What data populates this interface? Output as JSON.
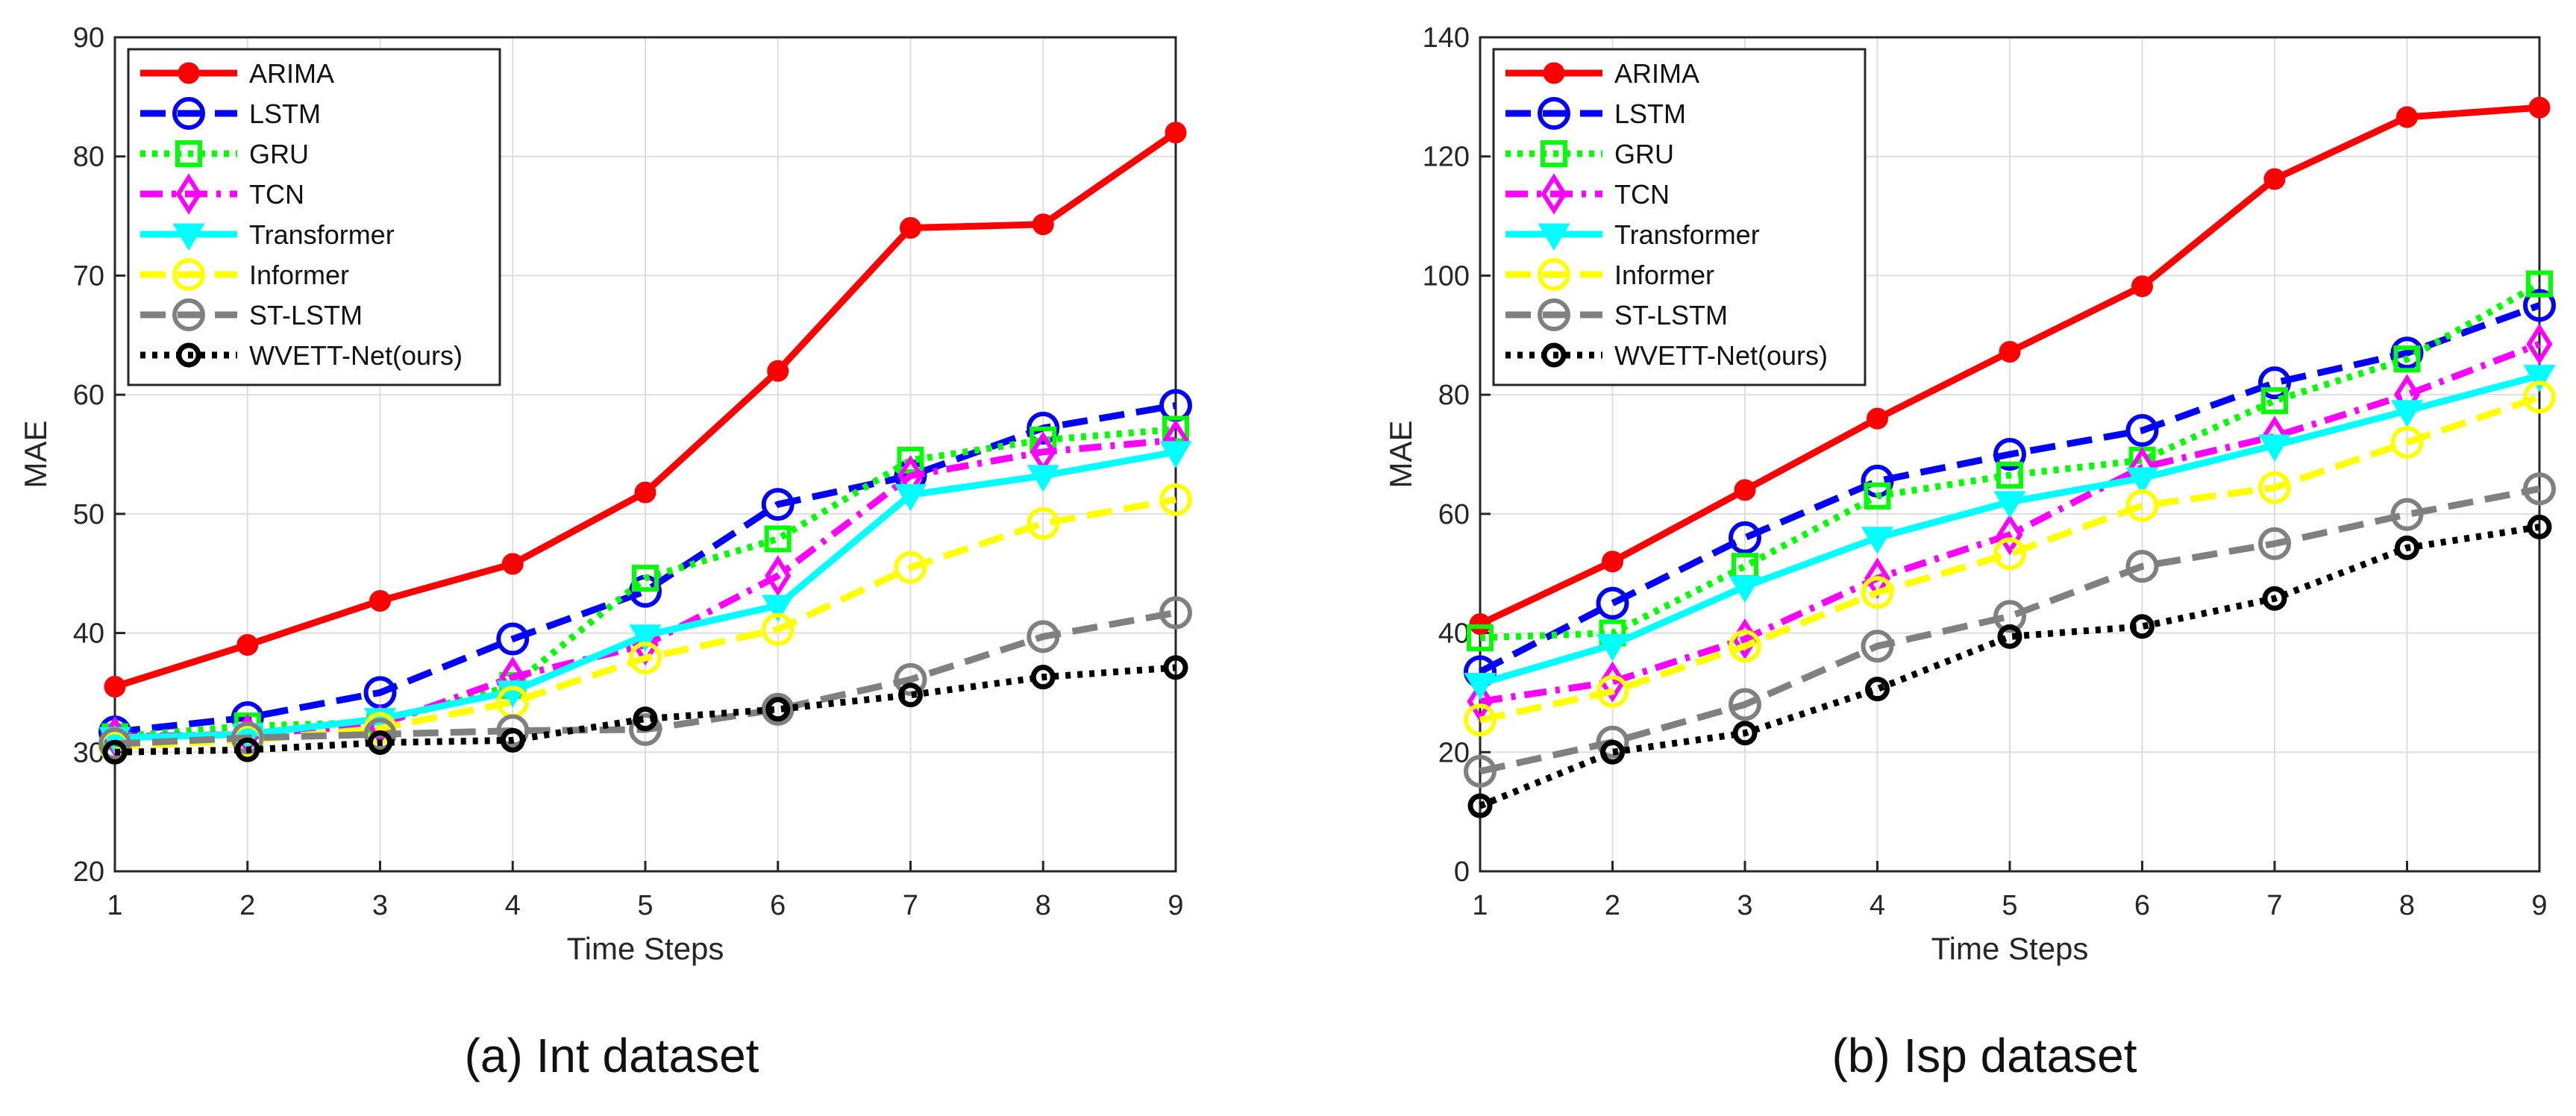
{
  "markers_legend": {
    "ARIMA": "circle-filled",
    "LSTM": "circle-c",
    "GRU": "square",
    "TCN": "diamond",
    "Transformer": "triangle-down",
    "Informer": "circle",
    "ST-LSTM": "circle",
    "WVETT-Net(ours)": "circle-dot"
  },
  "styles": {
    "ARIMA": {
      "color": "#ff0000",
      "dash": "solid"
    },
    "LSTM": {
      "color": "#0000ff",
      "dash": "dashed"
    },
    "GRU": {
      "color": "#00ff00",
      "dash": "dotted"
    },
    "TCN": {
      "color": "#ff00ff",
      "dash": "dashdot"
    },
    "Transformer": {
      "color": "#00ffff",
      "dash": "solid"
    },
    "Informer": {
      "color": "#ffff00",
      "dash": "dashed"
    },
    "ST-LSTM": {
      "color": "#808080",
      "dash": "dashed"
    },
    "WVETT-Net(ours)": {
      "color": "#000000",
      "dash": "dotted"
    }
  },
  "chart_data": [
    {
      "type": "line",
      "title": "(a) Int dataset",
      "xlabel": "Time Steps",
      "ylabel": "MAE",
      "xlim": [
        1,
        9
      ],
      "ylim": [
        20,
        90
      ],
      "xticks": [
        1,
        2,
        3,
        4,
        5,
        6,
        7,
        8,
        9
      ],
      "yticks": [
        20,
        30,
        40,
        50,
        60,
        70,
        80,
        90
      ],
      "grid": true,
      "legend_position": "top-left",
      "x": [
        1,
        2,
        3,
        4,
        5,
        6,
        7,
        8,
        9
      ],
      "series": [
        {
          "name": "ARIMA",
          "values": [
            35.5,
            39,
            42.7,
            45.8,
            51.8,
            62,
            74,
            74.3,
            82
          ]
        },
        {
          "name": "LSTM",
          "values": [
            31.7,
            32.9,
            35,
            39.5,
            43.5,
            50.8,
            53.2,
            57.2,
            59.1
          ]
        },
        {
          "name": "GRU",
          "values": [
            31.3,
            32.2,
            32.5,
            35.6,
            44.6,
            47.9,
            54.5,
            56.2,
            57.1
          ]
        },
        {
          "name": "TCN",
          "values": [
            31.3,
            31.5,
            32.3,
            36.3,
            39,
            44.8,
            53.2,
            55.2,
            56.2
          ]
        },
        {
          "name": "Transformer",
          "values": [
            31.2,
            31.5,
            32.8,
            35.1,
            39.8,
            42.3,
            51.6,
            53.2,
            55.2
          ]
        },
        {
          "name": "Informer",
          "values": [
            30.5,
            31,
            32,
            34.2,
            37.9,
            40.3,
            45.5,
            49.2,
            51.2
          ]
        },
        {
          "name": "ST-LSTM",
          "values": [
            30.7,
            31.2,
            31.5,
            31.8,
            31.9,
            33.6,
            36.1,
            39.7,
            41.7
          ]
        },
        {
          "name": "WVETT-Net(ours)",
          "values": [
            30,
            30.2,
            30.8,
            31,
            32.8,
            33.6,
            34.8,
            36.3,
            37.1
          ]
        }
      ]
    },
    {
      "type": "line",
      "title": "(b) Isp dataset",
      "xlabel": "Time Steps",
      "ylabel": "MAE",
      "xlim": [
        1,
        9
      ],
      "ylim": [
        0,
        140
      ],
      "xticks": [
        1,
        2,
        3,
        4,
        5,
        6,
        7,
        8,
        9
      ],
      "yticks": [
        0,
        20,
        40,
        60,
        80,
        100,
        120,
        140
      ],
      "grid": true,
      "legend_position": "top-left",
      "x": [
        1,
        2,
        3,
        4,
        5,
        6,
        7,
        8,
        9
      ],
      "series": [
        {
          "name": "ARIMA",
          "values": [
            41.5,
            52,
            64,
            76,
            87.2,
            98.2,
            116.2,
            126.6,
            128.2
          ]
        },
        {
          "name": "LSTM",
          "values": [
            33.5,
            45,
            56,
            65.5,
            70,
            74,
            82,
            87,
            95
          ]
        },
        {
          "name": "GRU",
          "values": [
            39.2,
            40,
            51.2,
            63,
            66.5,
            69,
            79,
            86,
            98.6
          ]
        },
        {
          "name": "TCN",
          "values": [
            28.5,
            31.8,
            39,
            49.2,
            56.5,
            67.8,
            73,
            80,
            88.5
          ]
        },
        {
          "name": "Transformer",
          "values": [
            31.5,
            38,
            47.8,
            56,
            62,
            66,
            71.5,
            77.3,
            83.2
          ]
        },
        {
          "name": "Informer",
          "values": [
            25.4,
            30.2,
            37.8,
            46.8,
            53.3,
            61.4,
            64.4,
            72,
            79.6
          ]
        },
        {
          "name": "ST-LSTM",
          "values": [
            16.8,
            21.7,
            28,
            37.8,
            42.8,
            51.2,
            55,
            59.9,
            64.2
          ]
        },
        {
          "name": "WVETT-Net(ours)",
          "values": [
            11,
            20,
            23.2,
            30.6,
            39.4,
            41.1,
            45.8,
            54.3,
            57.8
          ]
        }
      ]
    }
  ]
}
